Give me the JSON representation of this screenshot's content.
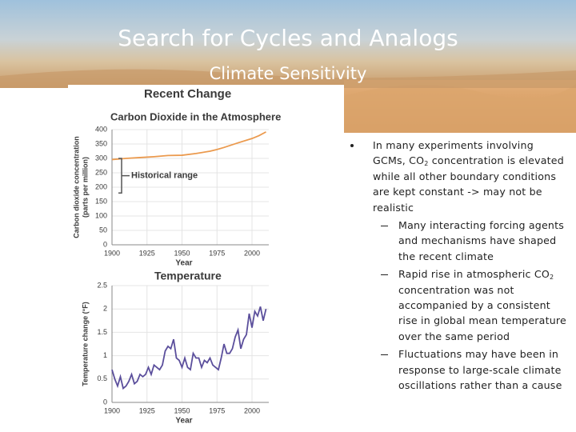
{
  "slide": {
    "title": "Search for Cycles and Analogs",
    "subtitle": "Climate Sensitivity",
    "panel_title": "Recent Change",
    "bullets": [
      {
        "parts": [
          "In many experiments involving GCMs, CO",
          "2",
          " concentration is elevated while all other boundary conditions are kept constant -> may not be realistic"
        ],
        "sub": [
          {
            "parts": [
              "Many interacting forcing agents and mechanisms have shaped the recent climate"
            ]
          },
          {
            "parts": [
              "Rapid rise in atmospheric CO",
              "2",
              " concentration was not accompanied by a consistent rise in global mean temperature over the same period"
            ]
          },
          {
            "parts": [
              "Fluctuations may have been in response to large-scale climate oscillations rather than a cause"
            ]
          }
        ]
      }
    ]
  },
  "chart_data": [
    {
      "type": "line",
      "title": "Carbon Dioxide in the Atmosphere",
      "x_label": "Year",
      "y_label": [
        "Carbon dioxide concentration",
        "(parts per million)"
      ],
      "x": [
        1900,
        1910,
        1920,
        1930,
        1940,
        1950,
        1960,
        1970,
        1975,
        1980,
        1990,
        2000,
        2005,
        2010
      ],
      "values": [
        296,
        300,
        303,
        306,
        310,
        311,
        317,
        325,
        331,
        338,
        354,
        369,
        379,
        392
      ],
      "color": "#eb9a4e",
      "xlim": [
        1900,
        2012
      ],
      "ylim": [
        0,
        400
      ],
      "xticks": [
        1900,
        1925,
        1950,
        1975,
        2000
      ],
      "yticks": [
        0,
        50,
        100,
        150,
        200,
        250,
        300,
        350,
        400
      ],
      "grid": true,
      "annotation": {
        "text": "Historical range",
        "range": [
          180,
          300
        ]
      }
    },
    {
      "type": "line",
      "title": "Temperature",
      "x_label": "Year",
      "y_label": [
        "Temperature change (°F)"
      ],
      "x": [
        1900,
        1902,
        1904,
        1906,
        1908,
        1910,
        1912,
        1914,
        1916,
        1918,
        1920,
        1922,
        1924,
        1926,
        1928,
        1930,
        1932,
        1934,
        1936,
        1938,
        1940,
        1942,
        1944,
        1946,
        1948,
        1950,
        1952,
        1954,
        1956,
        1958,
        1960,
        1962,
        1964,
        1966,
        1968,
        1970,
        1972,
        1974,
        1976,
        1978,
        1980,
        1982,
        1984,
        1986,
        1988,
        1990,
        1992,
        1994,
        1996,
        1998,
        2000,
        2002,
        2004,
        2006,
        2008,
        2010
      ],
      "values": [
        0.7,
        0.5,
        0.35,
        0.55,
        0.3,
        0.35,
        0.45,
        0.6,
        0.4,
        0.45,
        0.6,
        0.55,
        0.6,
        0.75,
        0.6,
        0.8,
        0.75,
        0.7,
        0.8,
        1.1,
        1.2,
        1.15,
        1.35,
        0.95,
        0.9,
        0.75,
        0.95,
        0.75,
        0.7,
        1.05,
        0.95,
        0.95,
        0.75,
        0.9,
        0.85,
        0.95,
        0.8,
        0.75,
        0.7,
        0.95,
        1.25,
        1.05,
        1.05,
        1.15,
        1.4,
        1.55,
        1.15,
        1.35,
        1.45,
        1.9,
        1.6,
        1.95,
        1.85,
        2.05,
        1.75,
        2.0
      ],
      "color": "#5b4f9c",
      "xlim": [
        1900,
        2012
      ],
      "ylim": [
        0,
        2.5
      ],
      "xticks": [
        1900,
        1925,
        1950,
        1975,
        2000
      ],
      "yticks": [
        0,
        0.5,
        1,
        1.5,
        2,
        2.5
      ],
      "grid": true
    }
  ]
}
